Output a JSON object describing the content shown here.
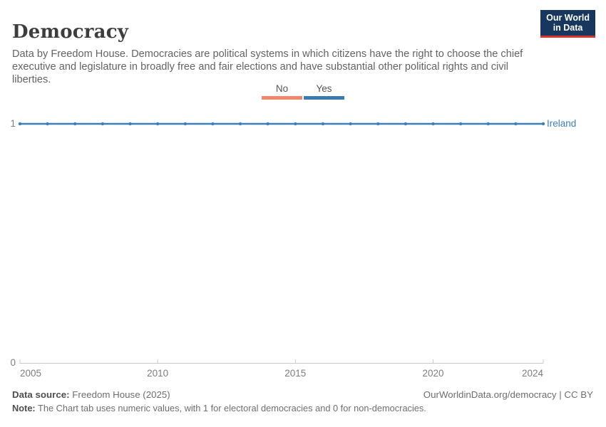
{
  "header": {
    "title": "Democracy",
    "subtitle": "Data by Freedom House. Democracies are political systems in which citizens have the right to choose the chief executive and legislature in broadly free and fair elections and have substantial other political rights and civil liberties.",
    "logo": {
      "line1": "Our World",
      "line2": "in Data"
    }
  },
  "legend": {
    "items": [
      {
        "label": "No",
        "color": "#f0876a"
      },
      {
        "label": "Yes",
        "color": "#3a7bb0"
      }
    ]
  },
  "chart_data": {
    "type": "line",
    "title": "Democracy",
    "x": [
      2005,
      2006,
      2007,
      2008,
      2009,
      2010,
      2011,
      2012,
      2013,
      2014,
      2015,
      2016,
      2017,
      2018,
      2019,
      2020,
      2021,
      2022,
      2023,
      2024
    ],
    "series": [
      {
        "name": "Ireland",
        "color": "#3d7fb7",
        "values": [
          1,
          1,
          1,
          1,
          1,
          1,
          1,
          1,
          1,
          1,
          1,
          1,
          1,
          1,
          1,
          1,
          1,
          1,
          1,
          1
        ]
      }
    ],
    "xlabel": "",
    "ylabel": "",
    "xlim": [
      2005,
      2024
    ],
    "ylim": [
      0,
      1
    ],
    "x_ticks": [
      2005,
      2010,
      2015,
      2020,
      2024
    ],
    "y_ticks": [
      0,
      1
    ],
    "grid": false,
    "legend_position": "top-center",
    "entity_label": "Ireland"
  },
  "footer": {
    "datasource_label": "Data source:",
    "datasource_value": "Freedom House (2025)",
    "link": "OurWorldinData.org/democracy | CC BY",
    "note_label": "Note:",
    "note_value": "The Chart tab uses numeric values, with 1 for electoral democracies and 0 for non-democracies."
  },
  "colors": {
    "series_blue": "#3d7fb7",
    "legend_no_orange": "#f0876a",
    "legend_yes_blue": "#3a7bb0",
    "logo_navy": "#18375f",
    "logo_red": "#d8352f",
    "axis_line": "#c8c8c8",
    "axis_text": "#7d7d7d"
  }
}
